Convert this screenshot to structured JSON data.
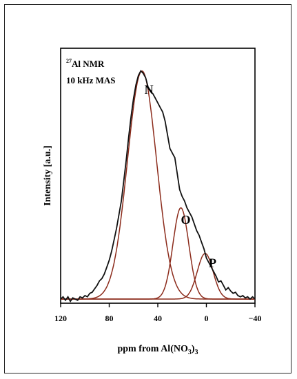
{
  "chart_data": {
    "type": "line",
    "xlabel": "ppm from Al(NO3)3",
    "xlabel_parts": {
      "prefix": "ppm from Al(NO",
      "sub1": "3",
      "mid": ")",
      "sub2": "3"
    },
    "ylabel": "Intensity [a.u.]",
    "xlim": [
      120,
      -40
    ],
    "ylim": [
      0,
      1
    ],
    "x_ticks": [
      120,
      80,
      40,
      0,
      -40
    ],
    "x_tick_labels": [
      "120",
      "80",
      "40",
      "0",
      "−40"
    ],
    "annotations": {
      "nucleus_mass": "27",
      "nucleus_text": "Al NMR",
      "mas": "10 kHz MAS",
      "peak_labels": [
        {
          "text": "N",
          "x": 51,
          "y": 0.9
        },
        {
          "text": "O",
          "x": 21,
          "y": 0.33
        },
        {
          "text": "P",
          "x": -2,
          "y": 0.14
        }
      ]
    },
    "series": [
      {
        "type": "gaussian_components",
        "color": "#8b2a1a",
        "components": [
          {
            "label": "N",
            "center": 53,
            "amplitude": 1.0,
            "sigma": 12
          },
          {
            "label": "O",
            "center": 21,
            "amplitude": 0.4,
            "sigma": 6.5
          },
          {
            "label": "P",
            "center": 1,
            "amplitude": 0.2,
            "sigma": 6.5
          }
        ]
      },
      {
        "type": "experimental",
        "color": "#111111",
        "x": [
          120,
          118,
          116,
          114,
          112,
          110,
          108,
          106,
          104,
          102,
          100,
          98,
          96,
          94,
          92,
          90,
          88,
          86,
          84,
          82,
          80,
          78,
          76,
          74,
          72,
          70,
          68,
          66,
          64,
          62,
          60,
          58,
          56,
          54,
          52,
          50,
          48,
          46,
          44,
          42,
          40,
          38,
          36,
          34,
          32,
          30,
          28,
          26,
          24,
          22,
          20,
          18,
          16,
          14,
          12,
          10,
          8,
          6,
          4,
          2,
          0,
          -2,
          -4,
          -6,
          -8,
          -10,
          -12,
          -14,
          -16,
          -18,
          -20,
          -22,
          -24,
          -26,
          -28,
          -30,
          -32,
          -34,
          -36,
          -38,
          -40
        ],
        "y": [
          0.0,
          0.01,
          -0.005,
          0.01,
          -0.01,
          0.005,
          0.0,
          -0.005,
          0.01,
          0.005,
          0.015,
          0.01,
          0.025,
          0.03,
          0.045,
          0.06,
          0.08,
          0.09,
          0.11,
          0.14,
          0.17,
          0.21,
          0.26,
          0.31,
          0.37,
          0.43,
          0.52,
          0.61,
          0.71,
          0.8,
          0.88,
          0.94,
          0.98,
          1.0,
          0.99,
          0.97,
          0.93,
          0.91,
          0.9,
          0.88,
          0.86,
          0.84,
          0.82,
          0.78,
          0.72,
          0.66,
          0.64,
          0.62,
          0.55,
          0.48,
          0.45,
          0.43,
          0.4,
          0.38,
          0.36,
          0.33,
          0.3,
          0.28,
          0.25,
          0.22,
          0.18,
          0.16,
          0.14,
          0.12,
          0.1,
          0.075,
          0.08,
          0.06,
          0.04,
          0.05,
          0.035,
          0.025,
          0.03,
          0.015,
          0.01,
          0.015,
          0.005,
          0.01,
          0.0,
          0.01,
          0.0
        ]
      }
    ]
  }
}
